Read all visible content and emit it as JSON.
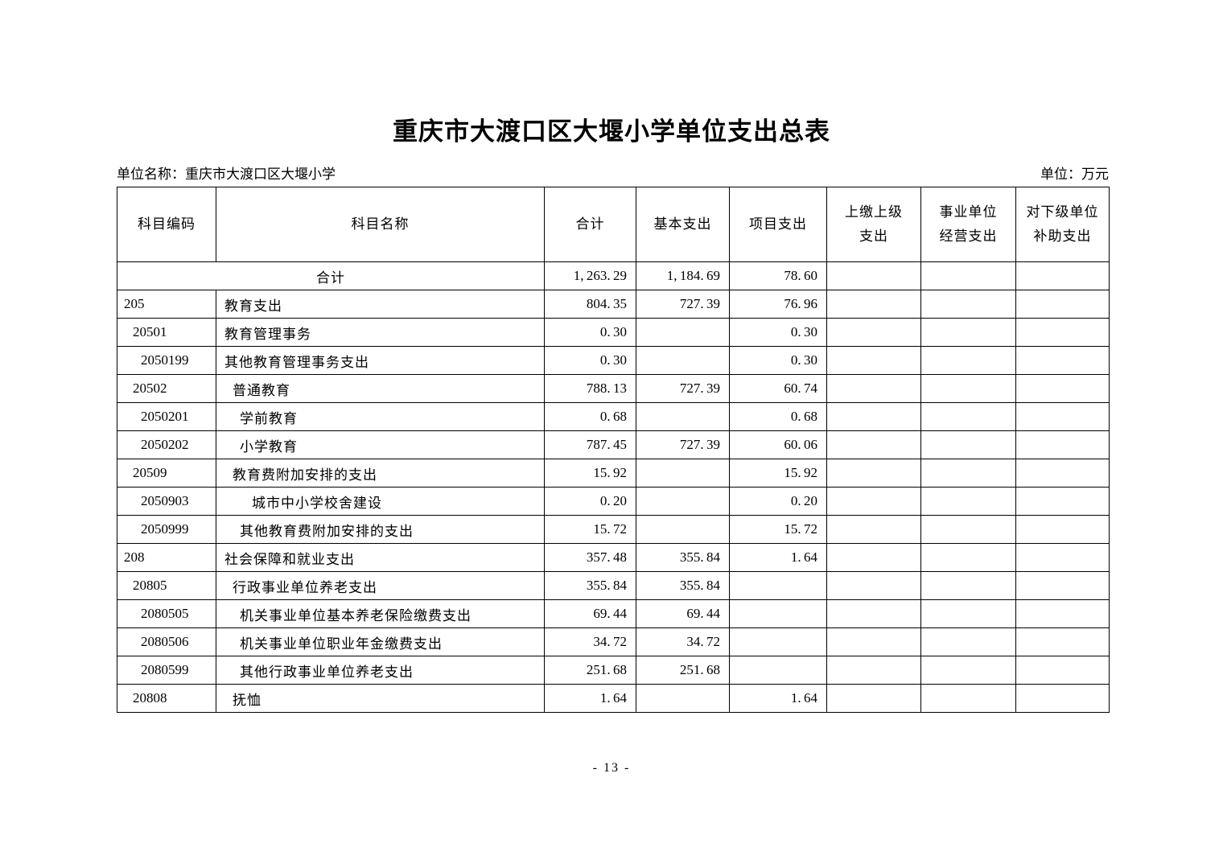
{
  "page": {
    "title": "重庆市大渡口区大堰小学单位支出总表",
    "unit_name": "单位名称：重庆市大渡口区大堰小学",
    "unit": "单位：万元",
    "page_number": "- 13 -"
  },
  "table": {
    "headers": [
      "科目编码",
      "科目名称",
      "合计",
      "基本支出",
      "项目支出",
      "上缴上级\n支出",
      "事业单位\n经营支出",
      "对下级单位\n补助支出"
    ],
    "total_row": {
      "label": "合计",
      "values": [
        "1,263.29",
        "1,184.69",
        "78.60",
        "",
        "",
        ""
      ]
    },
    "rows": [
      {
        "code": "205",
        "name": "教育支出",
        "code_indent": 8,
        "name_indent": 10,
        "values": [
          "804.35",
          "727.39",
          "76.96",
          "",
          "",
          ""
        ]
      },
      {
        "code": "20501",
        "name": "教育管理事务",
        "code_indent": 19,
        "name_indent": 10,
        "values": [
          "0.30",
          "",
          "0.30",
          "",
          "",
          ""
        ]
      },
      {
        "code": "2050199",
        "name": "其他教育管理事务支出",
        "code_indent": 29,
        "name_indent": 10,
        "values": [
          "0.30",
          "",
          "0.30",
          "",
          "",
          ""
        ]
      },
      {
        "code": "20502",
        "name": "普通教育",
        "code_indent": 19,
        "name_indent": 20,
        "values": [
          "788.13",
          "727.39",
          "60.74",
          "",
          "",
          ""
        ]
      },
      {
        "code": "2050201",
        "name": "学前教育",
        "code_indent": 29,
        "name_indent": 29,
        "values": [
          "0.68",
          "",
          "0.68",
          "",
          "",
          ""
        ]
      },
      {
        "code": "2050202",
        "name": "小学教育",
        "code_indent": 29,
        "name_indent": 29,
        "values": [
          "787.45",
          "727.39",
          "60.06",
          "",
          "",
          ""
        ]
      },
      {
        "code": "20509",
        "name": "教育费附加安排的支出",
        "code_indent": 19,
        "name_indent": 20,
        "values": [
          "15.92",
          "",
          "15.92",
          "",
          "",
          ""
        ]
      },
      {
        "code": "2050903",
        "name": "城市中小学校舍建设",
        "code_indent": 29,
        "name_indent": 44,
        "values": [
          "0.20",
          "",
          "0.20",
          "",
          "",
          ""
        ]
      },
      {
        "code": "2050999",
        "name": "其他教育费附加安排的支出",
        "code_indent": 29,
        "name_indent": 29,
        "values": [
          "15.72",
          "",
          "15.72",
          "",
          "",
          ""
        ]
      },
      {
        "code": "208",
        "name": "社会保障和就业支出",
        "code_indent": 8,
        "name_indent": 10,
        "values": [
          "357.48",
          "355.84",
          "1.64",
          "",
          "",
          ""
        ]
      },
      {
        "code": "20805",
        "name": "行政事业单位养老支出",
        "code_indent": 19,
        "name_indent": 20,
        "values": [
          "355.84",
          "355.84",
          "",
          "",
          "",
          ""
        ]
      },
      {
        "code": "2080505",
        "name": "机关事业单位基本养老保险缴费支出",
        "code_indent": 29,
        "name_indent": 29,
        "values": [
          "69.44",
          "69.44",
          "",
          "",
          "",
          ""
        ]
      },
      {
        "code": "2080506",
        "name": "机关事业单位职业年金缴费支出",
        "code_indent": 29,
        "name_indent": 29,
        "values": [
          "34.72",
          "34.72",
          "",
          "",
          "",
          ""
        ]
      },
      {
        "code": "2080599",
        "name": "其他行政事业单位养老支出",
        "code_indent": 29,
        "name_indent": 29,
        "values": [
          "251.68",
          "251.68",
          "",
          "",
          "",
          ""
        ]
      },
      {
        "code": "20808",
        "name": "抚恤",
        "code_indent": 19,
        "name_indent": 20,
        "values": [
          "1.64",
          "",
          "1.64",
          "",
          "",
          ""
        ]
      }
    ]
  }
}
